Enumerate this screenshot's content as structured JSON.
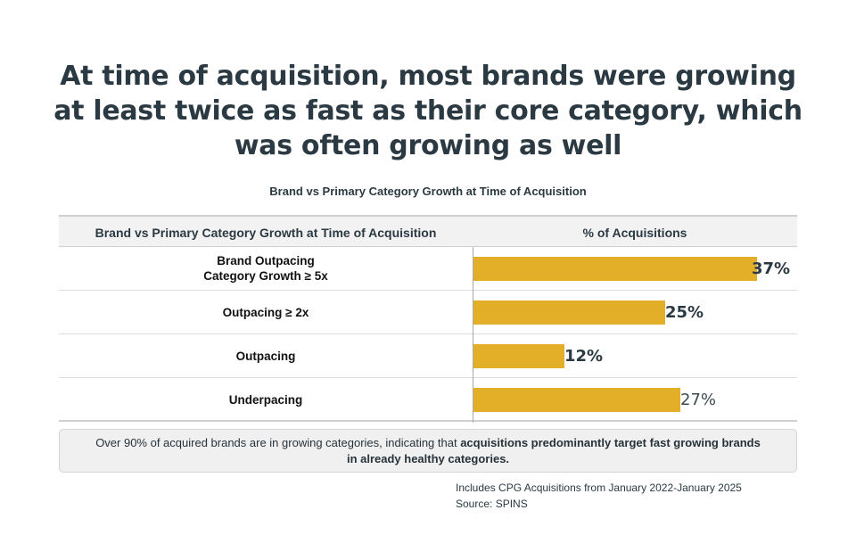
{
  "headline": "At time of acquisition, most brands were growing at least twice as fast as their core category, which was often growing as well",
  "chart_data": {
    "type": "bar",
    "orientation": "horizontal",
    "title": "Brand vs Primary Category Growth at Time of Acquisition",
    "columns": [
      "Brand vs Primary Category Growth at Time of Acquisition",
      "% of Acquisitions"
    ],
    "categories": [
      "Brand Outpacing\nCategory Growth ≥ 5x",
      "Outpacing ≥ 2x",
      "Outpacing",
      "Underpacing"
    ],
    "values": [
      37,
      25,
      12,
      27
    ],
    "value_labels": [
      "37%",
      "25%",
      "12%",
      "27%"
    ],
    "xlim": [
      0,
      37
    ],
    "bar_color": "#e3af28",
    "grid": false,
    "legend": "none"
  },
  "note": {
    "text_plain": "Over 90% of acquired brands are in growing categories, indicating that ",
    "text_bold": "acquisitions predominantly target fast growing brands in already healthy categories."
  },
  "footer": {
    "line1": "Includes CPG Acquisitions from January 2022-January 2025",
    "line2": "Source: SPINS"
  }
}
